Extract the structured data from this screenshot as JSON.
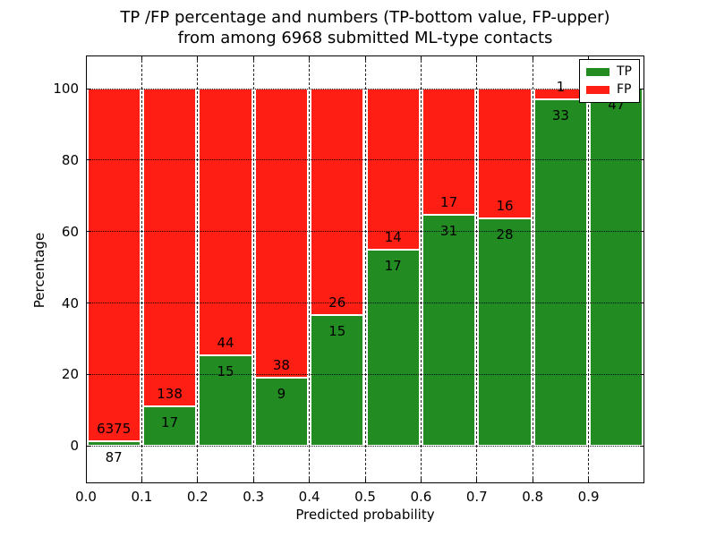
{
  "figure": {
    "title_line1": "TP /FP percentage and numbers (TP-bottom value, FP-upper)",
    "title_line2": "from among 6968 submitted ML-type contacts",
    "xlabel": "Predicted probability",
    "ylabel": "Percentage",
    "background_color": "#ffffff"
  },
  "legend": {
    "position": "upper right",
    "items": [
      {
        "label": "TP",
        "color": "#228b22"
      },
      {
        "label": "FP",
        "color": "#ff1e14"
      }
    ]
  },
  "chart_data": {
    "type": "bar",
    "stacked": true,
    "normalized_to_percent": true,
    "title": "TP /FP percentage and numbers (TP-bottom value, FP-upper) from among 6968 submitted ML-type contacts",
    "xlabel": "Predicted probability",
    "ylabel": "Percentage",
    "total_contacts": 6968,
    "bin_edges": [
      0.0,
      0.1,
      0.2,
      0.3,
      0.4,
      0.5,
      0.6,
      0.7,
      0.8,
      0.9,
      1.0
    ],
    "categories": [
      "0.0-0.1",
      "0.1-0.2",
      "0.2-0.3",
      "0.3-0.4",
      "0.4-0.5",
      "0.5-0.6",
      "0.6-0.7",
      "0.7-0.8",
      "0.8-0.9",
      "0.9-1.0"
    ],
    "series": [
      {
        "name": "TP",
        "color": "#228b22",
        "counts": [
          87,
          17,
          15,
          9,
          15,
          17,
          31,
          28,
          33,
          47
        ]
      },
      {
        "name": "FP",
        "color": "#ff1e14",
        "counts": [
          6375,
          138,
          44,
          38,
          26,
          14,
          17,
          16,
          1,
          0
        ]
      }
    ],
    "tp_percent_per_bin": [
      1.35,
      10.97,
      25.42,
      19.15,
      36.59,
      54.84,
      64.58,
      63.64,
      97.06,
      100.0
    ],
    "xtick_labels": [
      "0.0",
      "0.1",
      "0.2",
      "0.3",
      "0.4",
      "0.5",
      "0.6",
      "0.7",
      "0.8",
      "0.9"
    ],
    "ytick_values": [
      0,
      20,
      40,
      60,
      80,
      100
    ],
    "ylim": [
      -10.5,
      109.3
    ],
    "xlim": [
      0.0,
      1.0
    ],
    "grid": true,
    "grid_style": "dotted",
    "legend_position": "upper right"
  }
}
